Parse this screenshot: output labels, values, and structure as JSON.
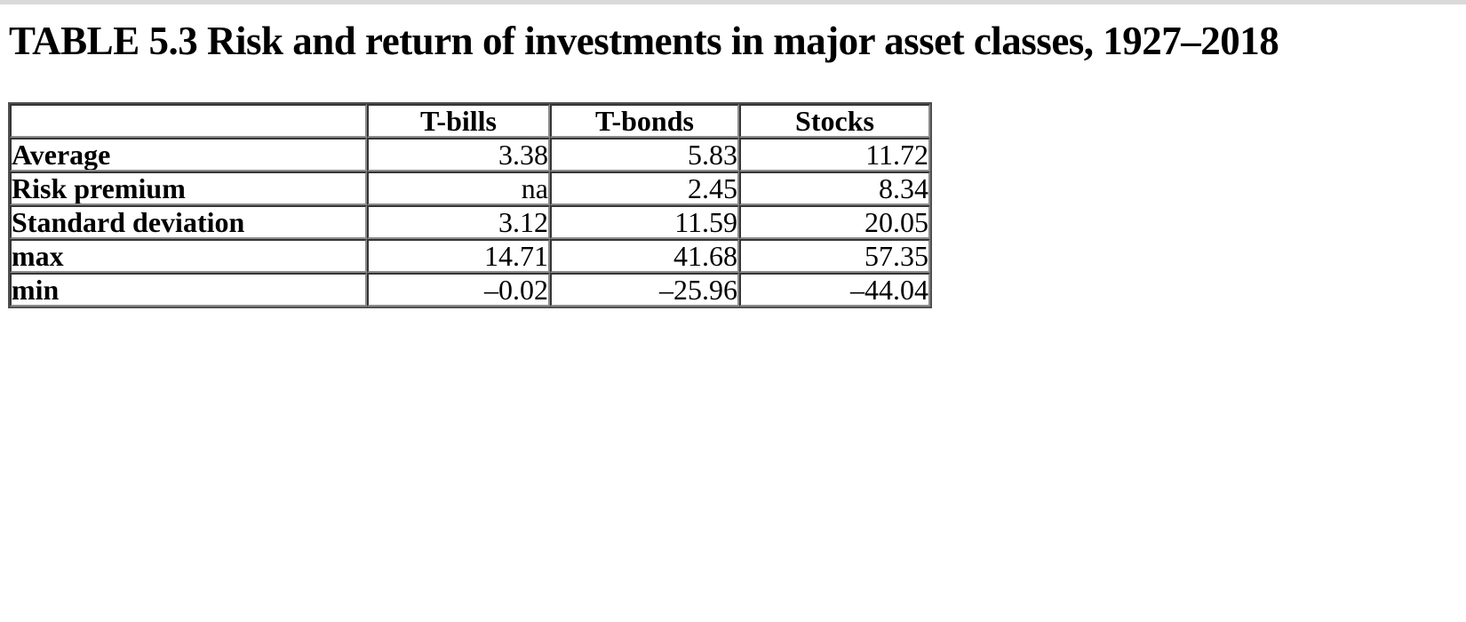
{
  "page": {
    "title": "TABLE 5.3 Risk and return of investments in major asset classes, 1927–2018",
    "window_strip_color": "#d9d9d9",
    "background_color": "#ffffff",
    "border_gray_dark": "#343434",
    "border_gray_light": "#8c8c8c"
  },
  "table": {
    "columns": [
      "",
      "T-bills",
      "T-bonds",
      "Stocks"
    ],
    "rows": [
      {
        "label": "Average",
        "values": [
          "3.38",
          "5.83",
          "11.72"
        ]
      },
      {
        "label": "Risk premium",
        "values": [
          "na",
          "2.45",
          "8.34"
        ]
      },
      {
        "label": "Standard deviation",
        "values": [
          "3.12",
          "11.59",
          "20.05"
        ]
      },
      {
        "label": "max",
        "values": [
          "14.71",
          "41.68",
          "57.35"
        ]
      },
      {
        "label": "min",
        "values": [
          "–0.02",
          "–25.96",
          "–44.04"
        ]
      }
    ]
  },
  "chart_data": {
    "type": "table",
    "title": "TABLE 5.3 Risk and return of investments in major asset classes, 1927–2018",
    "categories": [
      "T-bills",
      "T-bonds",
      "Stocks"
    ],
    "series": [
      {
        "name": "Average",
        "values": [
          3.38,
          5.83,
          11.72
        ]
      },
      {
        "name": "Risk premium",
        "values": [
          null,
          2.45,
          8.34
        ]
      },
      {
        "name": "Standard deviation",
        "values": [
          3.12,
          11.59,
          20.05
        ]
      },
      {
        "name": "max",
        "values": [
          14.71,
          41.68,
          57.35
        ]
      },
      {
        "name": "min",
        "values": [
          -0.02,
          -25.96,
          -44.04
        ]
      }
    ]
  }
}
